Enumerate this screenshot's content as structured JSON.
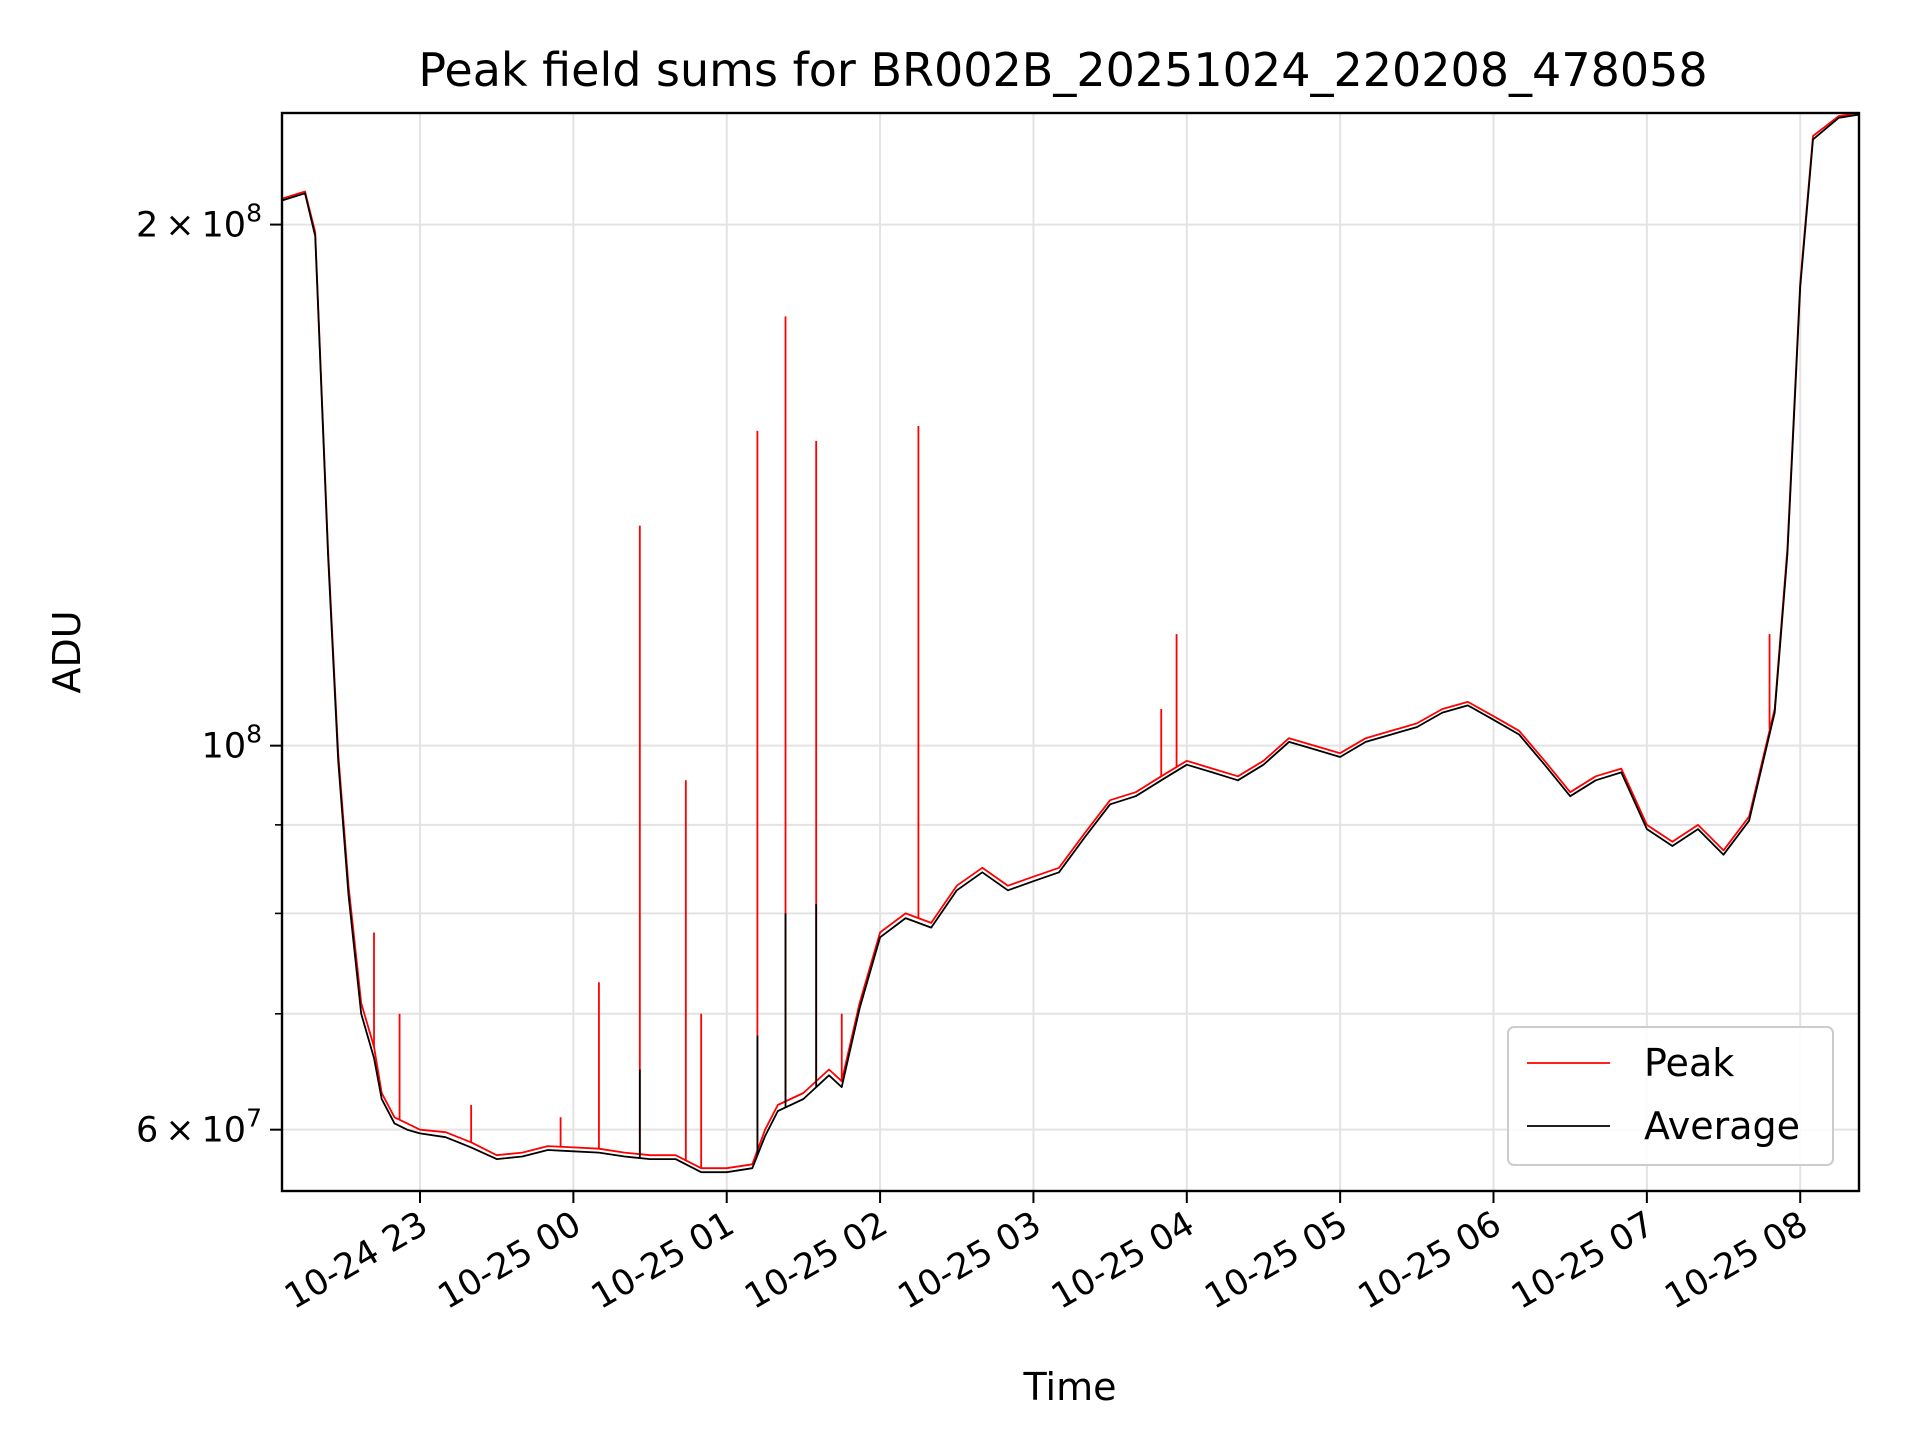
{
  "chart_data": {
    "type": "line",
    "title": "Peak field sums for BR002B_20251024_220208_478058",
    "xlabel": "Time",
    "ylabel": "ADU",
    "x_range": [
      "2025-10-24 22:06",
      "2025-10-25 08:23"
    ],
    "y_scale": "log",
    "ylim": [
      55300000,
      232000000
    ],
    "grid": true,
    "legend_position": "lower right",
    "x_ticks": [
      {
        "value": "2025-10-24 23:00",
        "label": "10-24 23"
      },
      {
        "value": "2025-10-25 00:00",
        "label": "10-25 00"
      },
      {
        "value": "2025-10-25 01:00",
        "label": "10-25 01"
      },
      {
        "value": "2025-10-25 02:00",
        "label": "10-25 02"
      },
      {
        "value": "2025-10-25 03:00",
        "label": "10-25 03"
      },
      {
        "value": "2025-10-25 04:00",
        "label": "10-25 04"
      },
      {
        "value": "2025-10-25 05:00",
        "label": "10-25 05"
      },
      {
        "value": "2025-10-25 06:00",
        "label": "10-25 06"
      },
      {
        "value": "2025-10-25 07:00",
        "label": "10-25 07"
      },
      {
        "value": "2025-10-25 08:00",
        "label": "10-25 08"
      }
    ],
    "y_ticks": [
      {
        "value": 60000000,
        "mantissa": "6",
        "exponent": "7"
      },
      {
        "value": 100000000,
        "mantissa": "",
        "exponent": "8"
      },
      {
        "value": 200000000,
        "mantissa": "2",
        "exponent": "8"
      }
    ],
    "y_minor_ticks": [
      70000000,
      80000000,
      90000000
    ],
    "tick_base": "10",
    "tick_times": "×",
    "series": [
      {
        "name": "Peak",
        "color": "#ff0000",
        "points": [
          [
            "2025-10-24 22:06",
            207000000
          ],
          [
            "2025-10-24 22:15",
            209000000
          ],
          [
            "2025-10-24 22:19",
            198000000
          ],
          [
            "2025-10-24 22:24",
            130000000
          ],
          [
            "2025-10-24 22:28",
            99000000
          ],
          [
            "2025-10-24 22:32",
            83000000
          ],
          [
            "2025-10-24 22:37",
            71000000
          ],
          [
            "2025-10-24 22:42",
            67000000
          ],
          [
            "2025-10-24 22:45",
            63000000
          ],
          [
            "2025-10-24 22:50",
            61000000
          ],
          [
            "2025-10-24 22:55",
            60500000
          ],
          [
            "2025-10-24 23:00",
            60000000
          ],
          [
            "2025-10-24 23:10",
            59800000
          ],
          [
            "2025-10-24 23:20",
            59000000
          ],
          [
            "2025-10-24 23:30",
            58000000
          ],
          [
            "2025-10-24 23:40",
            58200000
          ],
          [
            "2025-10-24 23:50",
            58700000
          ],
          [
            "2025-10-25 00:00",
            58600000
          ],
          [
            "2025-10-25 00:10",
            58500000
          ],
          [
            "2025-10-25 00:20",
            58200000
          ],
          [
            "2025-10-25 00:30",
            58000000
          ],
          [
            "2025-10-25 00:40",
            58000000
          ],
          [
            "2025-10-25 00:50",
            57000000
          ],
          [
            "2025-10-25 01:00",
            57000000
          ],
          [
            "2025-10-25 01:10",
            57300000
          ],
          [
            "2025-10-25 01:15",
            60000000
          ],
          [
            "2025-10-25 01:20",
            62000000
          ],
          [
            "2025-10-25 01:30",
            63000000
          ],
          [
            "2025-10-25 01:40",
            65000000
          ],
          [
            "2025-10-25 01:45",
            64000000
          ],
          [
            "2025-10-25 01:52",
            71000000
          ],
          [
            "2025-10-25 02:00",
            78000000
          ],
          [
            "2025-10-25 02:10",
            80000000
          ],
          [
            "2025-10-25 02:20",
            79000000
          ],
          [
            "2025-10-25 02:30",
            83000000
          ],
          [
            "2025-10-25 02:40",
            85000000
          ],
          [
            "2025-10-25 02:50",
            83000000
          ],
          [
            "2025-10-25 03:00",
            84000000
          ],
          [
            "2025-10-25 03:10",
            85000000
          ],
          [
            "2025-10-25 03:20",
            89000000
          ],
          [
            "2025-10-25 03:30",
            93000000
          ],
          [
            "2025-10-25 03:40",
            94000000
          ],
          [
            "2025-10-25 03:50",
            96000000
          ],
          [
            "2025-10-25 04:00",
            98000000
          ],
          [
            "2025-10-25 04:10",
            97000000
          ],
          [
            "2025-10-25 04:20",
            96000000
          ],
          [
            "2025-10-25 04:30",
            98000000
          ],
          [
            "2025-10-25 04:40",
            101000000
          ],
          [
            "2025-10-25 04:50",
            100000000
          ],
          [
            "2025-10-25 05:00",
            99000000
          ],
          [
            "2025-10-25 05:10",
            101000000
          ],
          [
            "2025-10-25 05:20",
            102000000
          ],
          [
            "2025-10-25 05:30",
            103000000
          ],
          [
            "2025-10-25 05:40",
            105000000
          ],
          [
            "2025-10-25 05:50",
            106000000
          ],
          [
            "2025-10-25 06:00",
            104000000
          ],
          [
            "2025-10-25 06:10",
            102000000
          ],
          [
            "2025-10-25 06:20",
            98000000
          ],
          [
            "2025-10-25 06:30",
            94000000
          ],
          [
            "2025-10-25 06:40",
            96000000
          ],
          [
            "2025-10-25 06:50",
            97000000
          ],
          [
            "2025-10-25 07:00",
            90000000
          ],
          [
            "2025-10-25 07:10",
            88000000
          ],
          [
            "2025-10-25 07:20",
            90000000
          ],
          [
            "2025-10-25 07:30",
            87000000
          ],
          [
            "2025-10-25 07:40",
            91000000
          ],
          [
            "2025-10-25 07:50",
            105000000
          ],
          [
            "2025-10-25 07:55",
            130000000
          ],
          [
            "2025-10-25 08:00",
            185000000
          ],
          [
            "2025-10-25 08:05",
            225000000
          ],
          [
            "2025-10-25 08:15",
            231000000
          ],
          [
            "2025-10-25 08:23",
            232000000
          ]
        ],
        "spikes": [
          [
            "2025-10-24 22:42",
            78000000
          ],
          [
            "2025-10-24 22:52",
            70000000
          ],
          [
            "2025-10-24 23:20",
            62000000
          ],
          [
            "2025-10-24 23:55",
            61000000
          ],
          [
            "2025-10-25 00:10",
            73000000
          ],
          [
            "2025-10-25 00:26",
            134000000
          ],
          [
            "2025-10-25 00:44",
            95500000
          ],
          [
            "2025-10-25 00:50",
            70000000
          ],
          [
            "2025-10-25 01:12",
            152000000
          ],
          [
            "2025-10-25 01:23",
            177000000
          ],
          [
            "2025-10-25 01:35",
            150000000
          ],
          [
            "2025-10-25 01:45",
            70000000
          ],
          [
            "2025-10-25 02:15",
            153000000
          ],
          [
            "2025-10-25 03:50",
            105000000
          ],
          [
            "2025-10-25 03:56",
            116000000
          ],
          [
            "2025-10-25 07:48",
            116000000
          ]
        ]
      },
      {
        "name": "Average",
        "color": "#000000",
        "points": [
          [
            "2025-10-24 22:06",
            206500000
          ],
          [
            "2025-10-24 22:15",
            208500000
          ],
          [
            "2025-10-24 22:19",
            197000000
          ],
          [
            "2025-10-24 22:24",
            129000000
          ],
          [
            "2025-10-24 22:28",
            98000000
          ],
          [
            "2025-10-24 22:32",
            82000000
          ],
          [
            "2025-10-24 22:37",
            70000000
          ],
          [
            "2025-10-24 22:42",
            66000000
          ],
          [
            "2025-10-24 22:45",
            62500000
          ],
          [
            "2025-10-24 22:50",
            60500000
          ],
          [
            "2025-10-24 22:55",
            60000000
          ],
          [
            "2025-10-24 23:00",
            59700000
          ],
          [
            "2025-10-24 23:10",
            59400000
          ],
          [
            "2025-10-24 23:20",
            58600000
          ],
          [
            "2025-10-24 23:30",
            57700000
          ],
          [
            "2025-10-24 23:40",
            57900000
          ],
          [
            "2025-10-24 23:50",
            58400000
          ],
          [
            "2025-10-25 00:00",
            58300000
          ],
          [
            "2025-10-25 00:10",
            58200000
          ],
          [
            "2025-10-25 00:20",
            57900000
          ],
          [
            "2025-10-25 00:30",
            57700000
          ],
          [
            "2025-10-25 00:40",
            57700000
          ],
          [
            "2025-10-25 00:50",
            56700000
          ],
          [
            "2025-10-25 01:00",
            56700000
          ],
          [
            "2025-10-25 01:10",
            57000000
          ],
          [
            "2025-10-25 01:15",
            59500000
          ],
          [
            "2025-10-25 01:20",
            61500000
          ],
          [
            "2025-10-25 01:30",
            62500000
          ],
          [
            "2025-10-25 01:40",
            64500000
          ],
          [
            "2025-10-25 01:45",
            63500000
          ],
          [
            "2025-10-25 01:52",
            70500000
          ],
          [
            "2025-10-25 02:00",
            77500000
          ],
          [
            "2025-10-25 02:10",
            79500000
          ],
          [
            "2025-10-25 02:20",
            78500000
          ],
          [
            "2025-10-25 02:30",
            82500000
          ],
          [
            "2025-10-25 02:40",
            84500000
          ],
          [
            "2025-10-25 02:50",
            82500000
          ],
          [
            "2025-10-25 03:00",
            83500000
          ],
          [
            "2025-10-25 03:10",
            84500000
          ],
          [
            "2025-10-25 03:20",
            88500000
          ],
          [
            "2025-10-25 03:30",
            92500000
          ],
          [
            "2025-10-25 03:40",
            93500000
          ],
          [
            "2025-10-25 03:50",
            95500000
          ],
          [
            "2025-10-25 04:00",
            97500000
          ],
          [
            "2025-10-25 04:10",
            96500000
          ],
          [
            "2025-10-25 04:20",
            95500000
          ],
          [
            "2025-10-25 04:30",
            97500000
          ],
          [
            "2025-10-25 04:40",
            100500000
          ],
          [
            "2025-10-25 04:50",
            99500000
          ],
          [
            "2025-10-25 05:00",
            98500000
          ],
          [
            "2025-10-25 05:10",
            100500000
          ],
          [
            "2025-10-25 05:20",
            101500000
          ],
          [
            "2025-10-25 05:30",
            102500000
          ],
          [
            "2025-10-25 05:40",
            104500000
          ],
          [
            "2025-10-25 05:50",
            105500000
          ],
          [
            "2025-10-25 06:00",
            103500000
          ],
          [
            "2025-10-25 06:10",
            101500000
          ],
          [
            "2025-10-25 06:20",
            97500000
          ],
          [
            "2025-10-25 06:30",
            93500000
          ],
          [
            "2025-10-25 06:40",
            95500000
          ],
          [
            "2025-10-25 06:50",
            96500000
          ],
          [
            "2025-10-25 07:00",
            89500000
          ],
          [
            "2025-10-25 07:10",
            87500000
          ],
          [
            "2025-10-25 07:20",
            89500000
          ],
          [
            "2025-10-25 07:30",
            86500000
          ],
          [
            "2025-10-25 07:40",
            90500000
          ],
          [
            "2025-10-25 07:50",
            104500000
          ],
          [
            "2025-10-25 07:55",
            129000000
          ],
          [
            "2025-10-25 08:00",
            184000000
          ],
          [
            "2025-10-25 08:05",
            224000000
          ],
          [
            "2025-10-25 08:15",
            230500000
          ],
          [
            "2025-10-25 08:23",
            231500000
          ]
        ],
        "spikes": [
          [
            "2025-10-25 00:26",
            65000000
          ],
          [
            "2025-10-25 01:12",
            68000000
          ],
          [
            "2025-10-25 01:23",
            80000000
          ],
          [
            "2025-10-25 01:35",
            81000000
          ]
        ]
      }
    ]
  }
}
